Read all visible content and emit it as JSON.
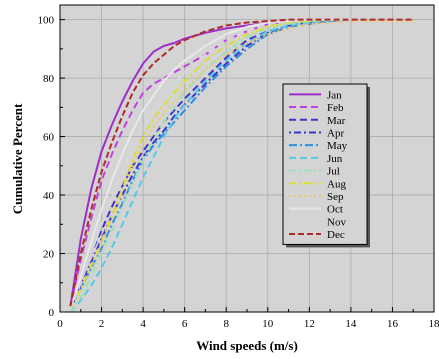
{
  "chart_data": {
    "type": "line",
    "title": "",
    "xlabel": "Wind speeds (m/s)",
    "ylabel": "Cumulative Percent",
    "xlim": [
      0,
      18
    ],
    "ylim": [
      0,
      105
    ],
    "xticks": [
      0,
      2,
      4,
      6,
      8,
      10,
      12,
      14,
      16,
      18
    ],
    "yticks": [
      0,
      20,
      40,
      60,
      80,
      100
    ],
    "grid": true,
    "legend_position": "right",
    "series": [
      {
        "name": "Jan",
        "color": "#9b30c8",
        "dash": "",
        "x": [
          0.5,
          1,
          1.5,
          2,
          2.5,
          3,
          3.5,
          4,
          4.5,
          5,
          5.5,
          6,
          7,
          8,
          9,
          10,
          11,
          12,
          13,
          14
        ],
        "y": [
          2,
          25,
          42,
          55,
          64,
          72,
          79,
          85,
          89,
          91,
          92,
          93.5,
          95.5,
          97,
          98,
          99,
          99.5,
          100,
          100,
          100
        ]
      },
      {
        "name": "Feb",
        "color": "#c040e0",
        "dash": "7,4",
        "x": [
          0.5,
          1,
          1.5,
          2,
          2.5,
          3,
          3.5,
          4,
          4.5,
          5,
          5.5,
          6,
          7,
          8,
          9,
          10,
          11,
          12,
          13
        ],
        "y": [
          2,
          18,
          32,
          45,
          54,
          62,
          69,
          75,
          78,
          80,
          82,
          84,
          88,
          93,
          96,
          98.5,
          99.5,
          100,
          100
        ]
      },
      {
        "name": "Mar",
        "color": "#4633c9",
        "dash": "7,4",
        "x": [
          0.5,
          1,
          1.5,
          2,
          2.5,
          3,
          3.5,
          4,
          4.5,
          5,
          5.5,
          6,
          7,
          8,
          9,
          10,
          11,
          12,
          13,
          14
        ],
        "y": [
          1,
          10,
          20,
          28,
          36,
          43,
          50,
          55,
          60,
          65,
          69,
          73,
          80,
          87,
          93,
          96,
          98,
          99,
          99.5,
          100
        ]
      },
      {
        "name": "Apr",
        "color": "#3a37c8",
        "dash": "2,3,7,3",
        "x": [
          0.5,
          1,
          1.5,
          2,
          2.5,
          3,
          3.5,
          4,
          4.5,
          5,
          5.5,
          6,
          7,
          8,
          9,
          10,
          11,
          12,
          13,
          14
        ],
        "y": [
          1,
          9,
          17,
          25,
          33,
          40,
          47,
          53,
          58,
          62,
          67,
          71,
          78,
          85,
          91,
          95.5,
          98,
          99,
          99.5,
          100
        ]
      },
      {
        "name": "May",
        "color": "#2d8ee0",
        "dash": "8,3,2,3",
        "x": [
          0.5,
          1,
          1.5,
          2,
          2.5,
          3,
          3.5,
          4,
          4.5,
          5,
          5.5,
          6,
          7,
          8,
          9,
          10,
          11,
          12,
          13,
          14
        ],
        "y": [
          1,
          8,
          15,
          22,
          30,
          37,
          45,
          52,
          57,
          61,
          65,
          69,
          77,
          84,
          90,
          95,
          97.5,
          98.5,
          99.5,
          100
        ]
      },
      {
        "name": "Jun",
        "color": "#56c8e8",
        "dash": "7,4",
        "x": [
          0.5,
          1,
          1.5,
          2,
          2.5,
          3,
          3.5,
          4,
          4.5,
          5,
          5.5,
          6,
          7,
          8,
          9,
          10,
          11,
          12,
          13,
          14
        ],
        "y": [
          0,
          4,
          9,
          15,
          22,
          30,
          38,
          46,
          53,
          60,
          66,
          71,
          79,
          86,
          92,
          96,
          98,
          99,
          99.5,
          100
        ]
      },
      {
        "name": "Jul",
        "color": "#9ee0b8",
        "dash": "7,3,2,3",
        "x": [
          0.5,
          1,
          1.5,
          2,
          2.5,
          3,
          3.5,
          4,
          4.5,
          5,
          5.5,
          6,
          7,
          8,
          9,
          10,
          11,
          12,
          13,
          14
        ],
        "y": [
          0,
          5,
          12,
          20,
          28,
          36,
          44,
          52,
          59,
          65,
          70,
          75,
          83,
          89,
          94,
          97,
          98.5,
          99.5,
          100,
          100
        ]
      },
      {
        "name": "Aug",
        "color": "#d8e030",
        "dash": "7,3,2,3",
        "x": [
          0.5,
          1,
          1.5,
          2,
          2.5,
          3,
          3.5,
          4,
          4.5,
          5,
          5.5,
          6,
          7,
          8,
          9,
          10,
          11,
          12,
          13,
          14
        ],
        "y": [
          1,
          8,
          16,
          24,
          33,
          42,
          52,
          60,
          66,
          71,
          75,
          79,
          86,
          91,
          95,
          97.5,
          99,
          99.5,
          100,
          100
        ]
      },
      {
        "name": "Sep",
        "color": "#f0c860",
        "dash": "2,3",
        "x": [
          0.5,
          1,
          1.5,
          2,
          2.5,
          3,
          3.5,
          4,
          4.5,
          5,
          5.5,
          6,
          7,
          8,
          9,
          10,
          11,
          12,
          13,
          14,
          15,
          16,
          17
        ],
        "y": [
          1,
          7,
          15,
          23,
          32,
          41,
          50,
          57,
          63,
          68,
          72,
          76,
          83,
          88,
          92,
          95,
          97,
          98.5,
          99,
          99.5,
          99.5,
          99.5,
          99.5
        ]
      },
      {
        "name": "Oct",
        "color": "#e8e8e8",
        "dash": "",
        "x": [
          0.5,
          1,
          1.5,
          2,
          2.5,
          3,
          3.5,
          4,
          4.5,
          5,
          5.5,
          6,
          7,
          8,
          9,
          10,
          11,
          12,
          13,
          14
        ],
        "y": [
          1,
          12,
          24,
          35,
          45,
          54,
          62,
          69,
          74,
          79,
          83,
          86,
          91,
          95,
          97.5,
          99,
          99.5,
          100,
          100,
          100
        ]
      },
      {
        "name": "Nov",
        "color": "#d8d8d8",
        "dash": "7,4",
        "x": [
          0.5,
          1,
          1.5,
          2,
          2.5,
          3,
          3.5,
          4,
          4.5,
          5,
          5.5,
          6,
          7,
          8,
          9,
          10,
          11,
          12,
          13,
          14
        ],
        "y": [
          1,
          10,
          20,
          30,
          39,
          48,
          56,
          63,
          69,
          74,
          78,
          82,
          88,
          93,
          96,
          98.5,
          99.5,
          100,
          100,
          100
        ]
      },
      {
        "name": "Dec",
        "color": "#b02a2a",
        "dash": "6,3",
        "x": [
          0.5,
          1,
          1.5,
          2,
          2.5,
          3,
          3.5,
          4,
          4.5,
          5,
          5.5,
          6,
          7,
          8,
          9,
          10,
          11,
          12,
          13,
          14,
          15,
          16,
          17
        ],
        "y": [
          2,
          20,
          35,
          48,
          58,
          67,
          75,
          81,
          85,
          88,
          91,
          93,
          96,
          98,
          99,
          99.5,
          100,
          100,
          100,
          100,
          100,
          100,
          100
        ]
      }
    ]
  }
}
